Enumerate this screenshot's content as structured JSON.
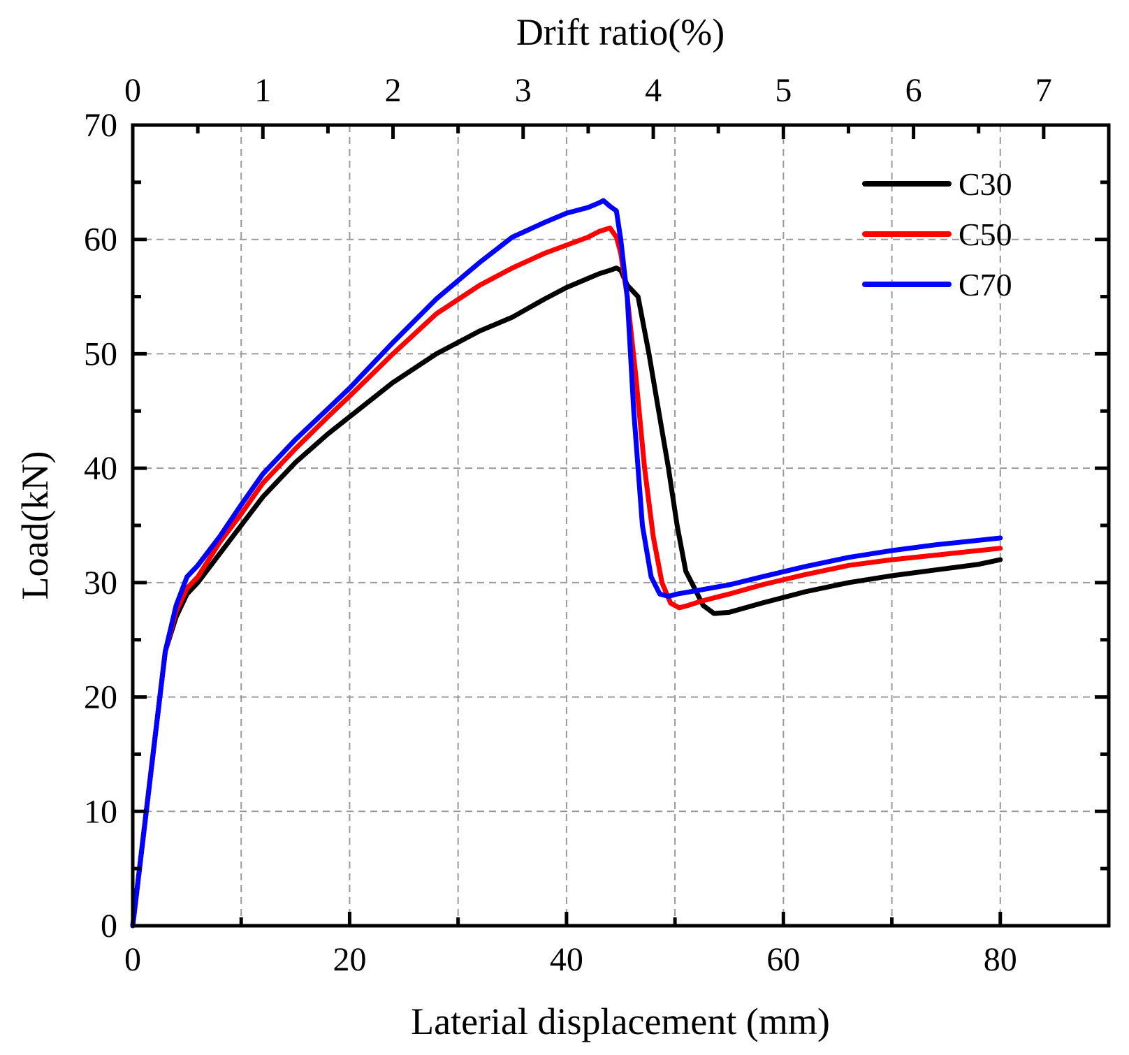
{
  "chart_data": {
    "type": "line",
    "title": "",
    "xlabel": "Laterial displacement (mm)",
    "ylabel": "Load(kN)",
    "x2label": "Drift ratio(%)",
    "xlim": [
      0,
      90
    ],
    "ylim": [
      0,
      70
    ],
    "x2lim": [
      0,
      7.5
    ],
    "xticks": [
      0,
      20,
      40,
      60,
      80
    ],
    "x_minor_ticks": [
      10,
      30,
      50,
      70,
      90
    ],
    "yticks": [
      0,
      10,
      20,
      30,
      40,
      50,
      60,
      70
    ],
    "y_minor_ticks": [
      5,
      15,
      25,
      35,
      45,
      55,
      65
    ],
    "x2ticks": [
      0,
      1,
      2,
      3,
      4,
      5,
      6,
      7
    ],
    "x2_minor_ticks": [
      0.5,
      1.5,
      2.5,
      3.5,
      4.5,
      5.5,
      6.5
    ],
    "x_grid": [
      10,
      20,
      30,
      40,
      50,
      60,
      70,
      80
    ],
    "y_grid": [
      10,
      20,
      30,
      40,
      50,
      60
    ],
    "grid": true,
    "legend_position": "top-right",
    "series": [
      {
        "name": "C30",
        "color": "#000000",
        "x": [
          0,
          1,
          2,
          3,
          4,
          5,
          6,
          8,
          10,
          12,
          15,
          18,
          20,
          24,
          28,
          32,
          35,
          38,
          40,
          42,
          43,
          44,
          44.6,
          45,
          45.6,
          46.6,
          47.6,
          48.5,
          49.4,
          50.2,
          51,
          51.8,
          52.6,
          53.6,
          55,
          58,
          62,
          66,
          70,
          74,
          78,
          80
        ],
        "y": [
          0,
          8,
          16,
          24,
          27,
          29,
          30,
          32.5,
          35,
          37.5,
          40.5,
          43,
          44.5,
          47.5,
          50,
          52,
          53.2,
          54.8,
          55.8,
          56.6,
          57.0,
          57.3,
          57.5,
          57.3,
          56,
          55,
          50,
          45,
          40,
          35,
          31,
          29.5,
          28,
          27.3,
          27.4,
          28.2,
          29.2,
          30,
          30.6,
          31.1,
          31.6,
          32
        ]
      },
      {
        "name": "C50",
        "color": "#ff0000",
        "x": [
          0,
          1,
          2,
          3,
          4,
          5,
          6,
          8,
          10,
          12,
          15,
          18,
          20,
          24,
          28,
          32,
          35,
          38,
          40,
          42,
          43,
          44,
          44.6,
          45,
          45.6,
          46.4,
          47.2,
          48,
          48.8,
          49.6,
          50.4,
          51.2,
          52.5,
          55,
          58,
          62,
          66,
          70,
          74,
          78,
          80
        ],
        "y": [
          0,
          8,
          16,
          24,
          27.5,
          29.5,
          30.5,
          33.5,
          36,
          38.7,
          41.7,
          44.5,
          46.3,
          50,
          53.5,
          56,
          57.5,
          58.8,
          59.5,
          60.2,
          60.7,
          61.0,
          60.2,
          58.8,
          55,
          48,
          40,
          34,
          30,
          28.2,
          27.8,
          28,
          28.4,
          29,
          29.8,
          30.7,
          31.5,
          32.0,
          32.4,
          32.8,
          33.0
        ]
      },
      {
        "name": "C70",
        "color": "#0000ff",
        "x": [
          0,
          1,
          2,
          3,
          4,
          5,
          6,
          8,
          10,
          12,
          15,
          18,
          20,
          24,
          28,
          32,
          35,
          38,
          40,
          42,
          43,
          43.4,
          44,
          44.6,
          45,
          45.6,
          46.2,
          47,
          47.8,
          48.6,
          49.4,
          50.2,
          52,
          55,
          58,
          62,
          66,
          70,
          74,
          78,
          80
        ],
        "y": [
          0,
          8,
          16,
          24,
          28,
          30.5,
          31.5,
          34,
          36.8,
          39.5,
          42.5,
          45.2,
          47,
          51,
          54.8,
          58,
          60.2,
          61.5,
          62.3,
          62.8,
          63.2,
          63.4,
          62.9,
          62.5,
          60,
          55,
          45,
          35,
          30.5,
          29,
          28.8,
          29,
          29.3,
          29.8,
          30.5,
          31.4,
          32.2,
          32.8,
          33.3,
          33.7,
          33.9
        ]
      }
    ]
  }
}
